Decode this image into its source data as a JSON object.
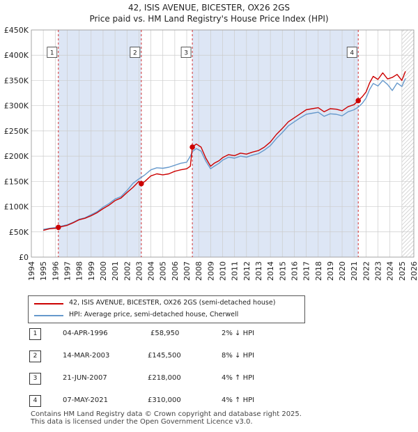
{
  "title_line1": "42, ISIS AVENUE, BICESTER, OX26 2GS",
  "title_line2": "Price paid vs. HM Land Registry's House Price Index (HPI)",
  "colors": {
    "property": "#cc0000",
    "hpi": "#6699cc",
    "shade": "#dde6f5",
    "grid": "#cccccc",
    "vline": "#cc0000"
  },
  "chart_data": {
    "type": "line",
    "title": "Price paid vs. HM Land Registry's House Price Index (HPI)",
    "xlabel": "",
    "ylabel": "",
    "xlim": [
      1994,
      2026
    ],
    "ylim": [
      0,
      450000
    ],
    "y_ticks": [
      {
        "value": 0,
        "label": "£0"
      },
      {
        "value": 50000,
        "label": "£50K"
      },
      {
        "value": 100000,
        "label": "£100K"
      },
      {
        "value": 150000,
        "label": "£150K"
      },
      {
        "value": 200000,
        "label": "£200K"
      },
      {
        "value": 250000,
        "label": "£250K"
      },
      {
        "value": 300000,
        "label": "£300K"
      },
      {
        "value": 350000,
        "label": "£350K"
      },
      {
        "value": 400000,
        "label": "£400K"
      },
      {
        "value": 450000,
        "label": "£450K"
      }
    ],
    "x_ticks": [
      "1994",
      "1995",
      "1996",
      "1997",
      "1998",
      "1999",
      "2000",
      "2001",
      "2002",
      "2003",
      "2004",
      "2005",
      "2006",
      "2007",
      "2008",
      "2009",
      "2010",
      "2011",
      "2012",
      "2013",
      "2014",
      "2015",
      "2016",
      "2017",
      "2018",
      "2019",
      "2020",
      "2021",
      "2022",
      "2023",
      "2024",
      "2025",
      "2026"
    ],
    "shaded_periods": [
      [
        1996.26,
        2003.2
      ],
      [
        2007.47,
        2021.35
      ]
    ],
    "hatched_after": 2025.0,
    "series": [
      {
        "name": "42, ISIS AVENUE, BICESTER, OX26 2GS (semi-detached house)",
        "x": [
          1995.0,
          1995.5,
          1996.0,
          1996.26,
          1997.0,
          1997.5,
          1998.0,
          1998.5,
          1999.0,
          1999.5,
          2000.0,
          2000.5,
          2001.0,
          2001.5,
          2002.0,
          2002.5,
          2003.0,
          2003.2,
          2003.5,
          2004.0,
          2004.5,
          2005.0,
          2005.5,
          2006.0,
          2006.5,
          2007.0,
          2007.3,
          2007.47,
          2007.8,
          2008.2,
          2008.6,
          2009.0,
          2009.3,
          2009.7,
          2010.0,
          2010.5,
          2011.0,
          2011.5,
          2012.0,
          2012.5,
          2013.0,
          2013.5,
          2014.0,
          2014.5,
          2015.0,
          2015.5,
          2016.0,
          2016.5,
          2017.0,
          2017.5,
          2018.0,
          2018.5,
          2019.0,
          2019.5,
          2020.0,
          2020.5,
          2021.0,
          2021.35,
          2021.7,
          2022.0,
          2022.3,
          2022.6,
          2023.0,
          2023.4,
          2023.8,
          2024.2,
          2024.6,
          2025.0,
          2025.3
        ],
        "values": [
          53000,
          56000,
          57000,
          58950,
          63000,
          68000,
          74000,
          77000,
          82000,
          88000,
          96000,
          103000,
          112000,
          117000,
          128000,
          138000,
          150000,
          145500,
          150000,
          161000,
          165000,
          163000,
          165000,
          170000,
          173000,
          175000,
          180000,
          218000,
          224000,
          218000,
          196000,
          180000,
          186000,
          191000,
          197000,
          203000,
          201000,
          206000,
          204000,
          208000,
          211000,
          218000,
          228000,
          243000,
          255000,
          268000,
          276000,
          284000,
          292000,
          294000,
          296000,
          288000,
          294000,
          293000,
          290000,
          298000,
          302000,
          310000,
          318000,
          327000,
          345000,
          358000,
          352000,
          365000,
          353000,
          356000,
          362000,
          350000,
          368000
        ]
      },
      {
        "name": "HPI: Average price, semi-detached house, Cherwell",
        "x": [
          1995.0,
          1995.5,
          1996.0,
          1996.26,
          1997.0,
          1997.5,
          1998.0,
          1998.5,
          1999.0,
          1999.5,
          2000.0,
          2000.5,
          2001.0,
          2001.5,
          2002.0,
          2002.5,
          2003.0,
          2003.2,
          2003.5,
          2004.0,
          2004.5,
          2005.0,
          2005.5,
          2006.0,
          2006.5,
          2007.0,
          2007.3,
          2007.47,
          2007.8,
          2008.2,
          2008.6,
          2009.0,
          2009.3,
          2009.7,
          2010.0,
          2010.5,
          2011.0,
          2011.5,
          2012.0,
          2012.5,
          2013.0,
          2013.5,
          2014.0,
          2014.5,
          2015.0,
          2015.5,
          2016.0,
          2016.5,
          2017.0,
          2017.5,
          2018.0,
          2018.5,
          2019.0,
          2019.5,
          2020.0,
          2020.5,
          2021.0,
          2021.35,
          2021.7,
          2022.0,
          2022.3,
          2022.6,
          2023.0,
          2023.4,
          2023.8,
          2024.2,
          2024.6,
          2025.0,
          2025.3
        ],
        "values": [
          55000,
          57000,
          58500,
          60000,
          64000,
          69000,
          75000,
          78000,
          84000,
          90000,
          99000,
          106000,
          115000,
          120000,
          132000,
          146000,
          155000,
          158000,
          163000,
          173000,
          177000,
          176000,
          178000,
          182000,
          186000,
          188000,
          200000,
          209000,
          215000,
          210000,
          190000,
          175000,
          180000,
          186000,
          192000,
          198000,
          196000,
          200000,
          198000,
          202000,
          205000,
          212000,
          221000,
          235000,
          247000,
          260000,
          268000,
          276000,
          283000,
          285000,
          287000,
          279000,
          284000,
          283000,
          280000,
          288000,
          292000,
          297000,
          305000,
          315000,
          332000,
          344000,
          339000,
          350000,
          342000,
          330000,
          345000,
          338000,
          354000
        ]
      }
    ],
    "sales": [
      {
        "marker": "1",
        "x": 1996.26,
        "value": 58950
      },
      {
        "marker": "2",
        "x": 2003.2,
        "value": 145500
      },
      {
        "marker": "3",
        "x": 2007.47,
        "value": 218000
      },
      {
        "marker": "4",
        "x": 2021.35,
        "value": 310000
      }
    ]
  },
  "legend": {
    "property_label": "42, ISIS AVENUE, BICESTER, OX26 2GS (semi-detached house)",
    "hpi_label": "HPI: Average price, semi-detached house, Cherwell"
  },
  "transactions": [
    {
      "marker": "1",
      "date": "04-APR-1996",
      "price": "£58,950",
      "hpi": "2% ↓ HPI"
    },
    {
      "marker": "2",
      "date": "14-MAR-2003",
      "price": "£145,500",
      "hpi": "8% ↓ HPI"
    },
    {
      "marker": "3",
      "date": "21-JUN-2007",
      "price": "£218,000",
      "hpi": "4% ↑ HPI"
    },
    {
      "marker": "4",
      "date": "07-MAY-2021",
      "price": "£310,000",
      "hpi": "4% ↑ HPI"
    }
  ],
  "footer": {
    "line1": "Contains HM Land Registry data © Crown copyright and database right 2025.",
    "line2": "This data is licensed under the Open Government Licence v3.0."
  }
}
